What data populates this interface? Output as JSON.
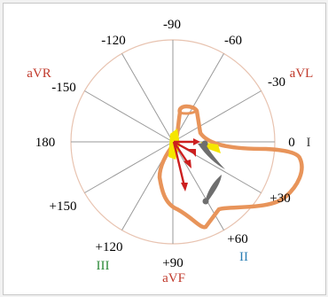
{
  "angles": [
    {
      "key": "m90",
      "text": "-90",
      "deg": -90
    },
    {
      "key": "m60",
      "text": "-60",
      "deg": -60
    },
    {
      "key": "m30",
      "text": "-30",
      "deg": -30
    },
    {
      "key": "p0",
      "text": "0",
      "deg": 0
    },
    {
      "key": "p30",
      "text": "+30",
      "deg": 30
    },
    {
      "key": "p60",
      "text": "+60",
      "deg": 60
    },
    {
      "key": "p90",
      "text": "+90",
      "deg": 90
    },
    {
      "key": "p120",
      "text": "+120",
      "deg": 120
    },
    {
      "key": "p150",
      "text": "+150",
      "deg": 150
    },
    {
      "key": "p180",
      "text": "180",
      "deg": 180
    },
    {
      "key": "m150",
      "text": "-150",
      "deg": -150
    },
    {
      "key": "m120",
      "text": "-120",
      "deg": -120
    }
  ],
  "leads": [
    {
      "key": "i",
      "text": "I",
      "color": "#3a3a3a"
    },
    {
      "key": "ii",
      "text": "II",
      "color": "#2b7fb5"
    },
    {
      "key": "iii",
      "text": "III",
      "color": "#2e8b3a"
    },
    {
      "key": "avr",
      "text": "aVR",
      "color": "#c0392b"
    },
    {
      "key": "avl",
      "text": "aVL",
      "color": "#c0392b"
    },
    {
      "key": "avf",
      "text": "aVF",
      "color": "#c0392b"
    }
  ],
  "colors": {
    "circle": "#e8c3b0",
    "spoke": "#9a9a9a",
    "loop": "#e8945a",
    "arrow": "#cc1f1f",
    "highlight": "#f5e600",
    "vector_gray": "#6e6e6e"
  }
}
